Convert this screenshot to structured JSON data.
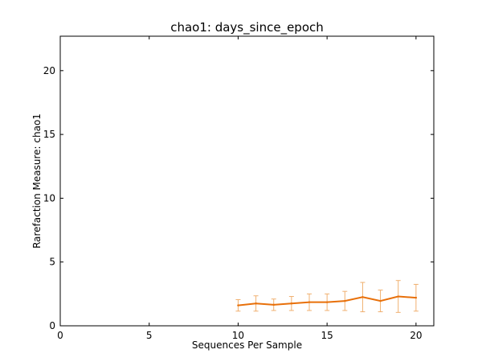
{
  "chart_data": {
    "type": "line",
    "title": "chao1: days_since_epoch",
    "xlabel": "Sequences Per Sample",
    "ylabel": "Rarefaction Measure: chao1",
    "xlim": [
      0,
      21
    ],
    "ylim": [
      0,
      22.7
    ],
    "x_ticks": [
      0,
      5,
      10,
      15,
      20
    ],
    "y_ticks": [
      0,
      5,
      10,
      15,
      20
    ],
    "grid": false,
    "legend": "none",
    "series": [
      {
        "color": "#e8700a",
        "error_color": "#f0b070",
        "x": [
          10,
          11,
          12,
          13,
          14,
          15,
          16,
          17,
          18,
          19,
          20
        ],
        "y": [
          1.6,
          1.75,
          1.65,
          1.75,
          1.85,
          1.85,
          1.95,
          2.25,
          1.95,
          2.3,
          2.2
        ],
        "yerr": [
          0.45,
          0.6,
          0.45,
          0.55,
          0.65,
          0.65,
          0.75,
          1.15,
          0.85,
          1.25,
          1.05
        ]
      }
    ]
  }
}
